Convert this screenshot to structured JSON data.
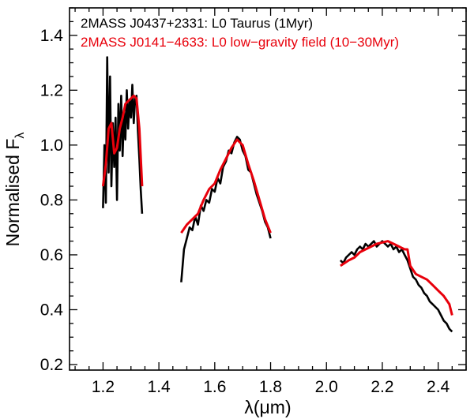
{
  "chart_data": {
    "type": "line",
    "xlabel": "λ(μm)",
    "ylabel": "Normalised F",
    "ylabel_subscript": "λ",
    "xlim": [
      1.08,
      2.5
    ],
    "ylim": [
      0.18,
      1.5
    ],
    "xticks": [
      1.2,
      1.4,
      1.6,
      1.8,
      2.0,
      2.2,
      2.4
    ],
    "xtick_labels": [
      "1.2",
      "1.4",
      "1.6",
      "1.8",
      "2.0",
      "2.2",
      "2.4"
    ],
    "yticks": [
      0.2,
      0.4,
      0.6,
      0.8,
      1.0,
      1.2,
      1.4
    ],
    "ytick_labels": [
      "0.2",
      "0.4",
      "0.6",
      "0.8",
      "1.0",
      "1.2",
      "1.4"
    ],
    "legend_position": "top-left",
    "colors": {
      "black": "#000000",
      "red": "#e8000b"
    },
    "series": [
      {
        "name": "2MASS J0437+2331: L0 Taurus (1Myr)",
        "color": "#000000",
        "segments": [
          {
            "x": [
              1.2,
              1.205,
              1.21,
              1.215,
              1.22,
              1.225,
              1.23,
              1.235,
              1.24,
              1.245,
              1.25,
              1.255,
              1.26,
              1.265,
              1.27,
              1.275,
              1.28,
              1.285,
              1.29,
              1.295,
              1.3,
              1.305,
              1.31,
              1.315,
              1.32,
              1.325,
              1.33,
              1.335,
              1.34
            ],
            "y": [
              0.77,
              1.0,
              0.79,
              1.32,
              0.9,
              1.25,
              0.85,
              1.08,
              0.92,
              1.1,
              0.8,
              1.15,
              0.98,
              1.18,
              0.96,
              1.12,
              1.02,
              1.2,
              1.06,
              1.16,
              1.1,
              1.22,
              1.08,
              1.17,
              1.18,
              1.05,
              0.95,
              0.84,
              0.75
            ]
          },
          {
            "x": [
              1.48,
              1.49,
              1.5,
              1.51,
              1.52,
              1.53,
              1.54,
              1.55,
              1.56,
              1.57,
              1.58,
              1.59,
              1.6,
              1.61,
              1.62,
              1.63,
              1.64,
              1.65,
              1.66,
              1.67,
              1.68,
              1.69,
              1.7,
              1.71,
              1.72,
              1.73,
              1.74,
              1.75,
              1.76,
              1.77,
              1.78,
              1.79,
              1.8
            ],
            "y": [
              0.5,
              0.62,
              0.66,
              0.7,
              0.69,
              0.74,
              0.71,
              0.78,
              0.76,
              0.8,
              0.79,
              0.84,
              0.83,
              0.88,
              0.86,
              0.92,
              0.94,
              0.98,
              0.97,
              1.01,
              1.03,
              1.02,
              0.98,
              0.96,
              0.91,
              0.9,
              0.86,
              0.82,
              0.79,
              0.76,
              0.72,
              0.7,
              0.66
            ]
          },
          {
            "x": [
              2.05,
              2.06,
              2.07,
              2.08,
              2.09,
              2.1,
              2.11,
              2.12,
              2.13,
              2.14,
              2.15,
              2.16,
              2.17,
              2.18,
              2.19,
              2.2,
              2.21,
              2.22,
              2.23,
              2.24,
              2.25,
              2.26,
              2.27,
              2.28,
              2.29,
              2.3,
              2.31,
              2.32,
              2.33,
              2.34,
              2.35,
              2.36,
              2.37,
              2.38,
              2.39,
              2.4,
              2.41,
              2.42,
              2.43,
              2.44,
              2.45
            ],
            "y": [
              0.58,
              0.57,
              0.59,
              0.6,
              0.61,
              0.6,
              0.62,
              0.63,
              0.62,
              0.64,
              0.63,
              0.64,
              0.65,
              0.63,
              0.64,
              0.65,
              0.64,
              0.63,
              0.64,
              0.62,
              0.63,
              0.61,
              0.62,
              0.6,
              0.58,
              0.55,
              0.52,
              0.51,
              0.49,
              0.48,
              0.46,
              0.45,
              0.43,
              0.42,
              0.41,
              0.4,
              0.38,
              0.36,
              0.35,
              0.33,
              0.32
            ]
          }
        ]
      },
      {
        "name": "2MASS J0141−4633: L0 low−gravity field (10−30Myr)",
        "color": "#e8000b",
        "segments": [
          {
            "x": [
              1.2,
              1.21,
              1.22,
              1.23,
              1.24,
              1.25,
              1.26,
              1.27,
              1.28,
              1.29,
              1.3,
              1.31,
              1.32,
              1.33,
              1.34
            ],
            "y": [
              0.85,
              0.93,
              1.06,
              1.08,
              0.97,
              0.99,
              1.06,
              1.1,
              1.15,
              1.16,
              1.17,
              1.18,
              1.17,
              1.06,
              0.85
            ]
          },
          {
            "x": [
              1.48,
              1.5,
              1.52,
              1.54,
              1.56,
              1.58,
              1.6,
              1.62,
              1.64,
              1.66,
              1.68,
              1.7,
              1.72,
              1.74,
              1.76,
              1.78,
              1.8
            ],
            "y": [
              0.68,
              0.71,
              0.73,
              0.75,
              0.8,
              0.84,
              0.86,
              0.91,
              0.95,
              0.99,
              1.02,
              1.0,
              0.93,
              0.87,
              0.8,
              0.73,
              0.68
            ]
          },
          {
            "x": [
              2.05,
              2.08,
              2.1,
              2.12,
              2.14,
              2.16,
              2.18,
              2.2,
              2.22,
              2.24,
              2.26,
              2.28,
              2.29,
              2.3,
              2.32,
              2.34,
              2.36,
              2.38,
              2.4,
              2.42,
              2.44,
              2.45
            ],
            "y": [
              0.56,
              0.58,
              0.59,
              0.61,
              0.62,
              0.63,
              0.64,
              0.645,
              0.65,
              0.64,
              0.63,
              0.62,
              0.62,
              0.56,
              0.53,
              0.52,
              0.51,
              0.49,
              0.47,
              0.45,
              0.42,
              0.38
            ]
          }
        ]
      }
    ]
  }
}
